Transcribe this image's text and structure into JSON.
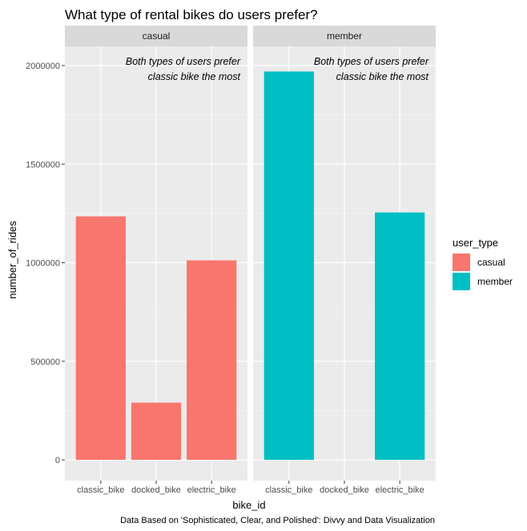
{
  "chart_data": {
    "type": "bar",
    "title": "What type of rental bikes do users prefer?",
    "xlabel": "bike_id",
    "ylabel": "number_of_rides",
    "categories": [
      "classic_bike",
      "docked_bike",
      "electric_bike"
    ],
    "ylim": [
      0,
      2000000
    ],
    "yticks": [
      0,
      500000,
      1000000,
      1500000,
      2000000
    ],
    "ytick_labels": [
      "0",
      "500000",
      "1000000",
      "1500000",
      "2000000"
    ],
    "facets": [
      {
        "name": "casual",
        "color": "#F8766D",
        "annotation_line1": "Both types of users prefer",
        "annotation_line2": "classic bike the most",
        "values": [
          1235000,
          290000,
          1012000
        ]
      },
      {
        "name": "member",
        "color": "#00BFC4",
        "annotation_line1": "Both types of users prefer",
        "annotation_line2": "classic bike the most",
        "values": [
          1970000,
          0,
          1255000
        ]
      }
    ],
    "legend": {
      "title": "user_type",
      "items": [
        {
          "label": "casual",
          "color": "#F8766D"
        },
        {
          "label": "member",
          "color": "#00BFC4"
        }
      ],
      "position": "right"
    },
    "caption": "Data Based on 'Sophisticated, Clear, and Polished': Divvy and Data Visualization",
    "grid": true
  }
}
